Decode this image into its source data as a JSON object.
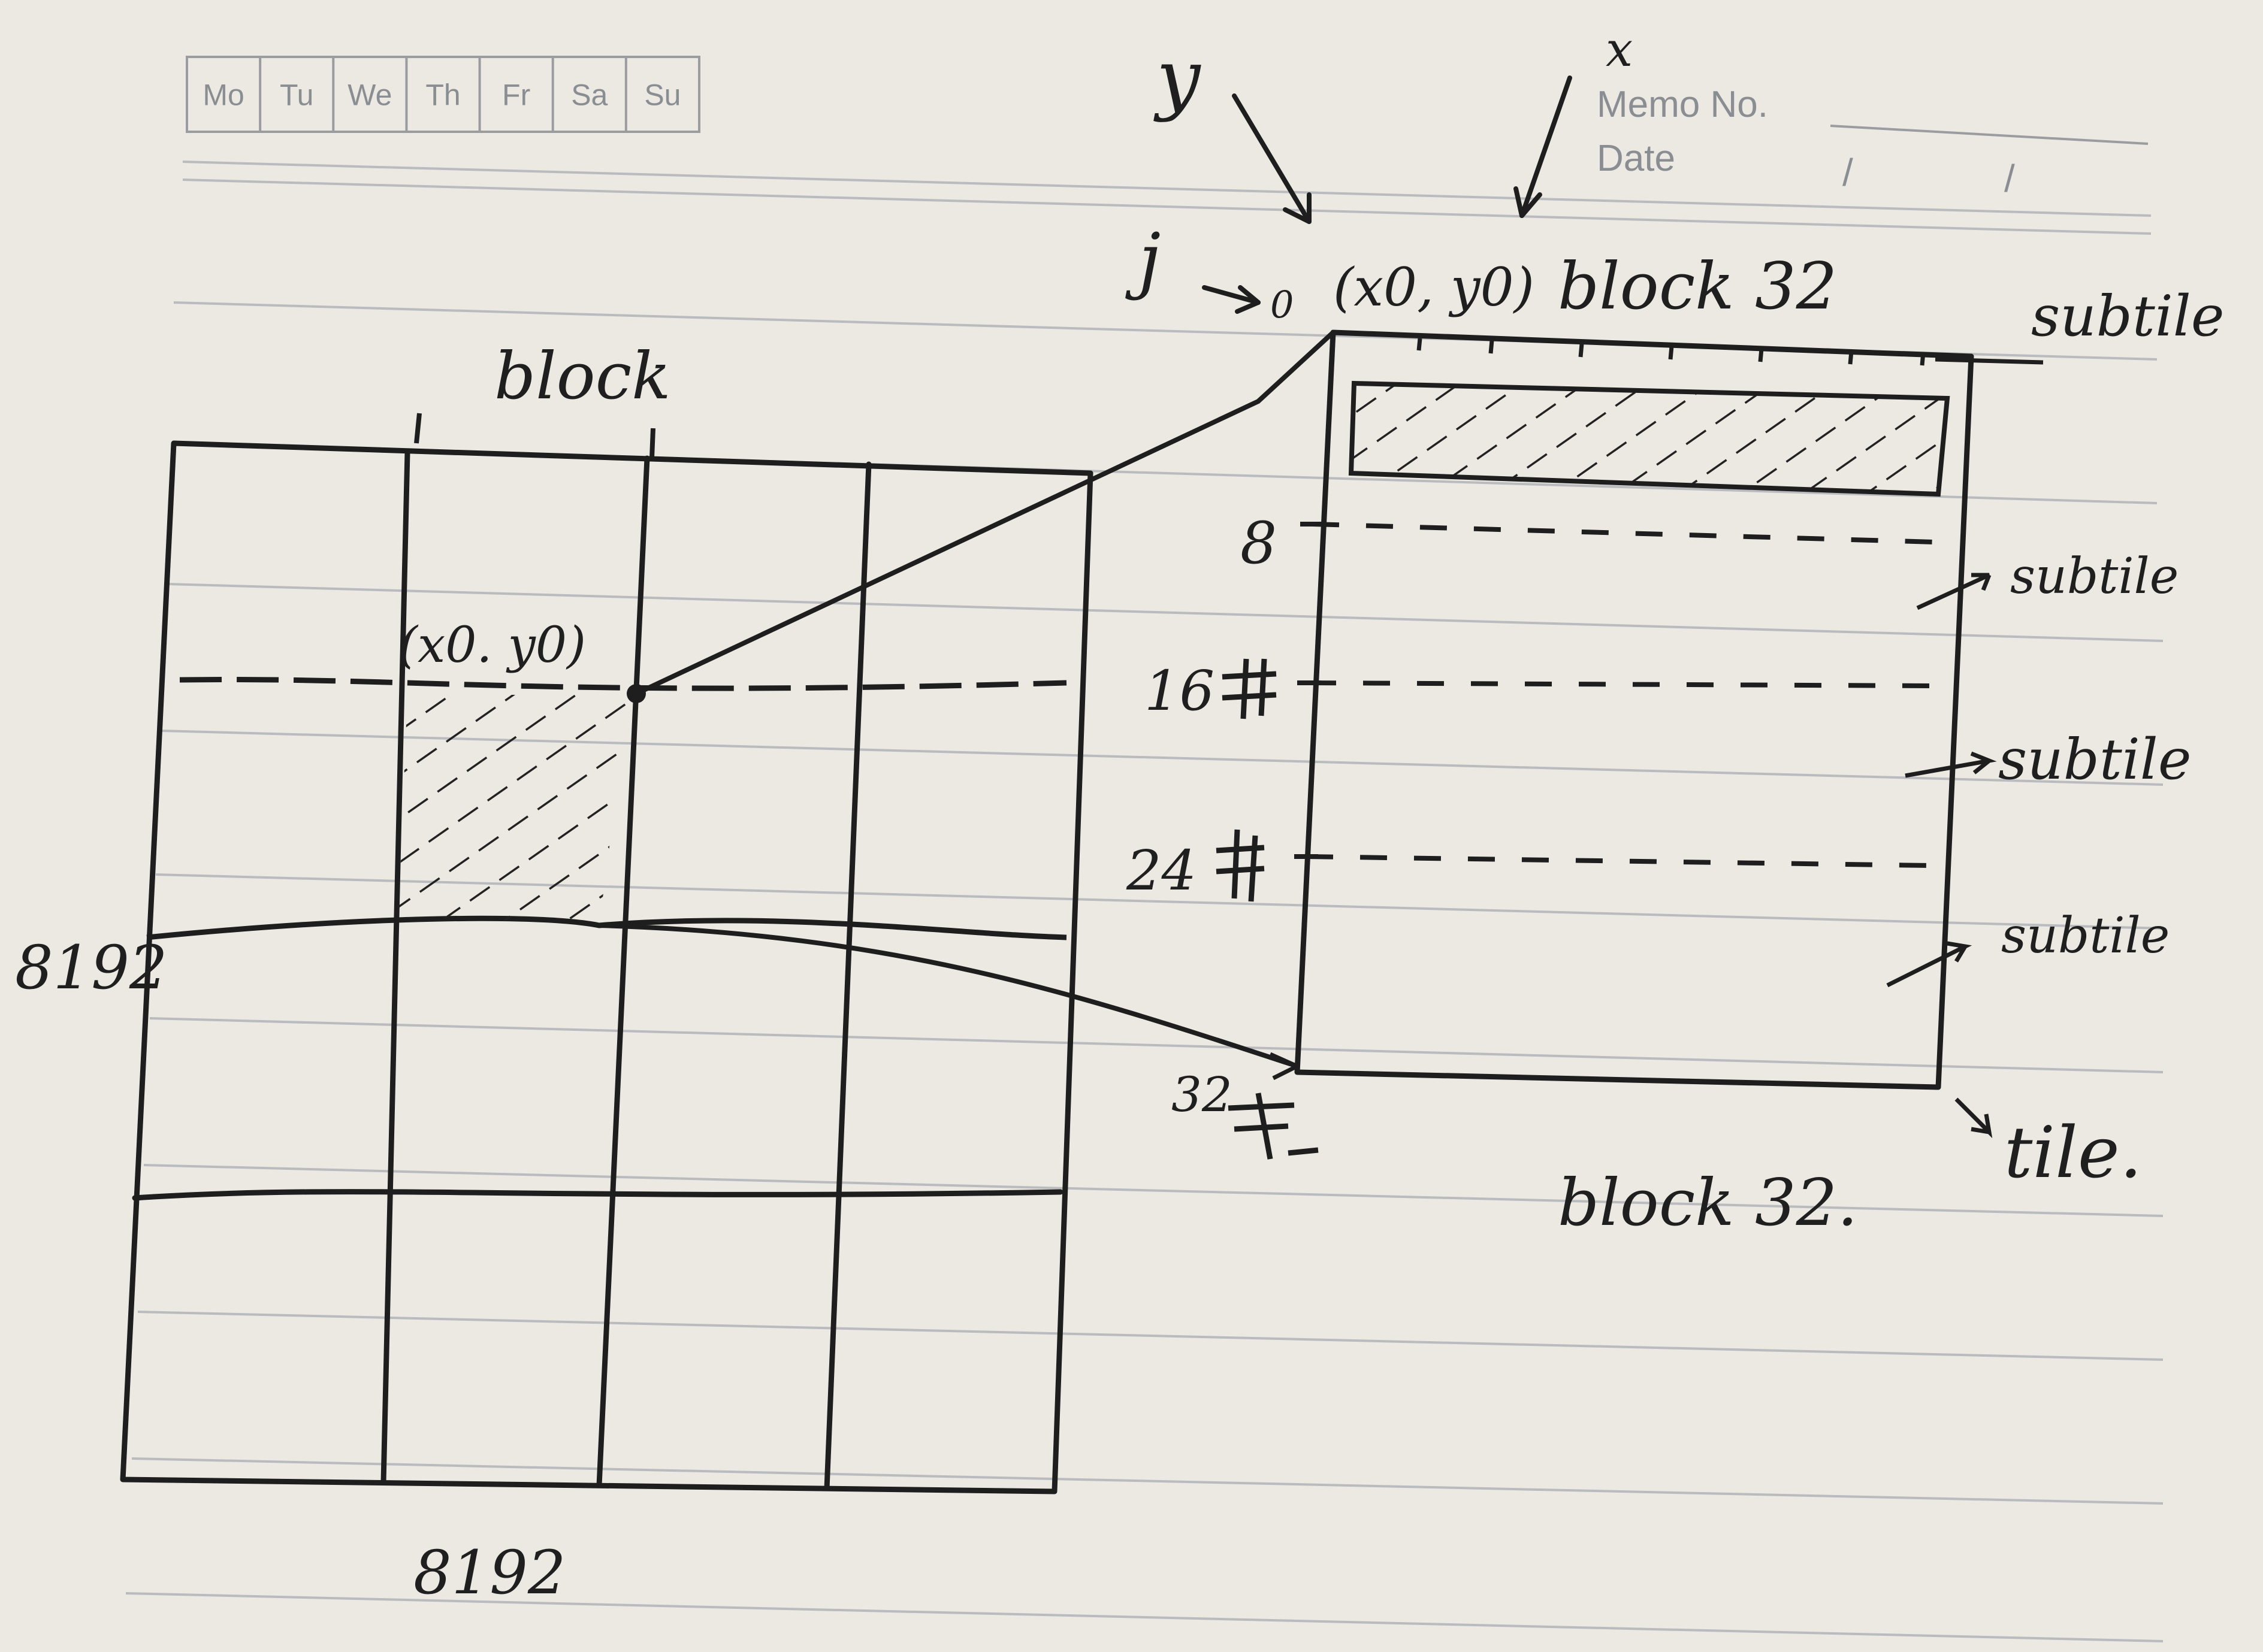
{
  "notebook": {
    "weekdays": [
      "Mo",
      "Tu",
      "We",
      "Th",
      "Fr",
      "Sa",
      "Su"
    ],
    "memo_label": "Memo No.",
    "date_label": "Date",
    "date_slashes": [
      "/",
      "/"
    ]
  },
  "diagram": {
    "axis_y": "y",
    "axis_x": "x",
    "axis_j": "j",
    "origin_zero": "0",
    "origin_coord": "(x0, y0)",
    "top_block_label": "block 32",
    "grid_block_label": "block",
    "grid_origin_coord": "(x0. y0)",
    "grid_side_left": "8192",
    "grid_side_bottom": "8192",
    "row_ticks": [
      "8",
      "16",
      "24",
      "32"
    ],
    "subtile_labels": [
      "subtile",
      "subtile",
      "subtile",
      "subtile"
    ],
    "tile_label": "tile.",
    "bottom_block_label": "block 32."
  }
}
